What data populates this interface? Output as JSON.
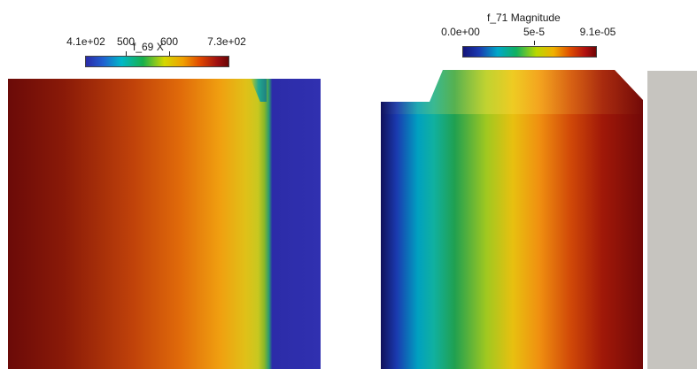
{
  "left_view": {
    "legend": {
      "title": "f_69 X",
      "ticks": [
        "4.1e+02",
        "500",
        "600",
        "7.3e+02"
      ]
    }
  },
  "right_view": {
    "legend": {
      "title": "f_71 Magnitude",
      "ticks": [
        "0.0e+00",
        "5e-5",
        "9.1e-05"
      ]
    }
  },
  "colors": {
    "background": "#ffffff",
    "gray_block": "#c6c4bf"
  }
}
